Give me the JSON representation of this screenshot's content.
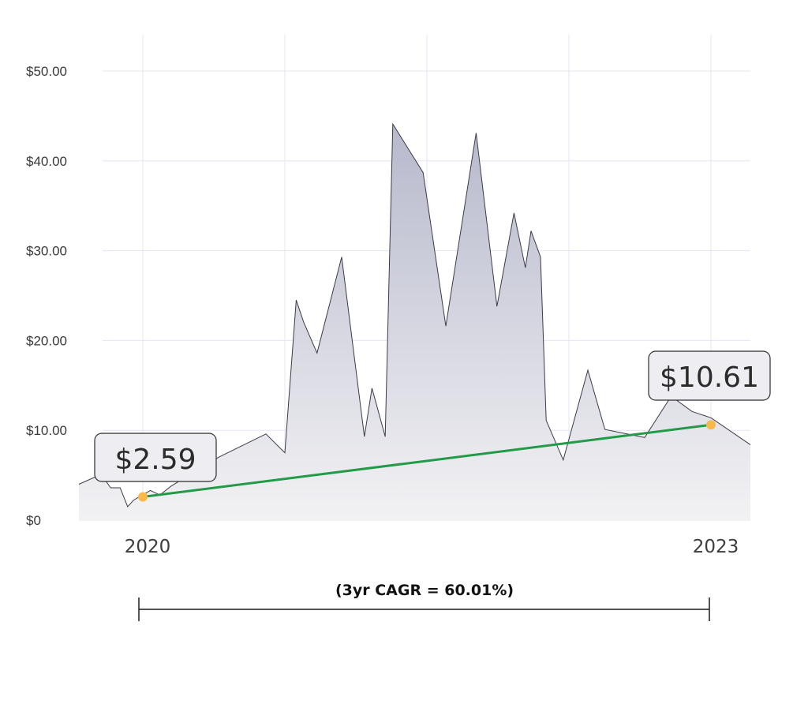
{
  "chart_data": {
    "type": "area",
    "x_date_range": [
      "2019-11",
      "2023-04"
    ],
    "ylim": [
      0,
      50
    ],
    "y_ticks": [
      "$0",
      "$10.00",
      "$20.00",
      "$30.00",
      "$40.00",
      "$50.00"
    ],
    "y_tick_values": [
      0,
      10,
      20,
      30,
      40,
      50
    ],
    "x_ticks": [
      "2020",
      "2023"
    ],
    "x_tick_values": [
      2020.0,
      2023.0
    ],
    "grid": true,
    "series": [
      {
        "x": [
          2019.75,
          2019.78,
          2019.83,
          2019.88,
          2019.92,
          2019.95,
          2019.98,
          2020.04,
          2020.09,
          2020.15,
          2020.22,
          2020.4,
          2020.65,
          2020.75,
          2020.81,
          2020.85,
          2020.92,
          2021.05,
          2021.17,
          2021.21,
          2021.28,
          2021.32,
          2021.48,
          2021.6,
          2021.76,
          2021.87,
          2021.96,
          2022.02,
          2022.05,
          2022.1,
          2022.13,
          2022.22,
          2022.35,
          2022.44,
          2022.65,
          2022.79,
          2022.9,
          2023.0,
          2023.22
        ],
        "y": [
          4.0,
          5.1,
          3.6,
          3.6,
          1.5,
          2.2,
          2.6,
          3.3,
          2.8,
          3.8,
          4.7,
          7.0,
          9.6,
          7.5,
          24.5,
          22.0,
          18.6,
          29.3,
          9.3,
          14.7,
          9.3,
          44.1,
          38.7,
          21.6,
          43.1,
          23.8,
          34.2,
          28.1,
          32.2,
          29.3,
          11.1,
          6.7,
          16.7,
          10.1,
          9.2,
          13.8,
          12.1,
          11.4,
          8.4
        ]
      }
    ],
    "trend_line": {
      "start": {
        "x": 2020.0,
        "y": 2.59
      },
      "end": {
        "x": 2023.0,
        "y": 10.61
      }
    },
    "start_label": "$2.59",
    "end_label": "$10.61",
    "annotation": "(3yr CAGR = 60.01%)",
    "colors": {
      "area_top": "#b7b9cc",
      "area_bottom": "#f2f2f4",
      "area_stroke": "#3b3b48",
      "trend": "#239a48",
      "marker": "#f9b94a",
      "grid": "#e3e4f6"
    }
  }
}
